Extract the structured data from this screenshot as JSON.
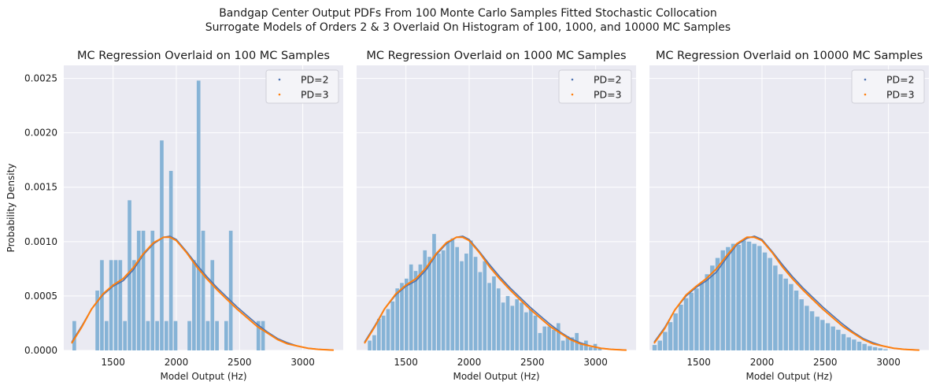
{
  "figure": {
    "suptitle_line1": "Bandgap Center Output PDFs From 100 Monte Carlo Samples Fitted Stochastic Collocation",
    "suptitle_line2": "Surrogate Models of Orders 2 & 3 Overlaid On Histogram of 100, 1000, and 10000 MC Samples"
  },
  "colors": {
    "panel_bg": "#eaeaf2",
    "grid": "#ffffff",
    "histogram": "#86b3d6",
    "pd2": "#4c72b0",
    "pd3": "#ff7f0e",
    "legend_bg": "#f4f4f8"
  },
  "chart_data": [
    {
      "type": "bar",
      "title": "MC Regression Overlaid on 100 MC Samples",
      "xlabel": "Model Output (Hz)",
      "ylabel": "Probability Density",
      "xlim": [
        1110,
        3320
      ],
      "ylim": [
        0,
        0.00262
      ],
      "xticks": [
        1500,
        2000,
        2500,
        3000
      ],
      "yticks": [
        "0.0000",
        "0.0005",
        "0.0010",
        "0.0015",
        "0.0020",
        "0.0025"
      ],
      "grid": true,
      "legend": {
        "position": "top-right",
        "entries": [
          "PD=2",
          "PD=3"
        ]
      },
      "histogram": {
        "bin_start": 1175,
        "bin_width": 36.4,
        "values": [
          0.00027,
          0,
          0,
          0,
          0,
          0.00055,
          0.00083,
          0.00027,
          0.00083,
          0.00083,
          0.00083,
          0.00027,
          0.00138,
          0.00083,
          0.0011,
          0.0011,
          0.00027,
          0.0011,
          0.00027,
          0.00193,
          0.00027,
          0.00165,
          0.00027,
          0,
          0,
          0.00027,
          0.00083,
          0.00248,
          0.0011,
          0.00027,
          0.00083,
          0.00027,
          0,
          0.00027,
          0.0011,
          0,
          0,
          0,
          0,
          0,
          0.00027,
          0.00027
        ]
      },
      "series": [
        {
          "name": "PD=2",
          "x": [
            1175,
            1250,
            1330,
            1420,
            1500,
            1580,
            1660,
            1740,
            1820,
            1900,
            1950,
            2000,
            2080,
            2160,
            2240,
            2320,
            2400,
            2480,
            2560,
            2640,
            2720,
            2800,
            2880,
            2960,
            3040,
            3120,
            3240
          ],
          "y": [
            8e-05,
            0.00022,
            0.00038,
            0.00051,
            0.00059,
            0.00064,
            0.00074,
            0.00088,
            0.00098,
            0.00104,
            0.00105,
            0.00102,
            0.00091,
            0.00079,
            0.00068,
            0.00058,
            0.00049,
            0.0004,
            0.00032,
            0.00024,
            0.00017,
            0.00011,
            7e-05,
            4e-05,
            2e-05,
            1e-05,
            3e-06
          ]
        },
        {
          "name": "PD=3",
          "x": [
            1175,
            1250,
            1330,
            1420,
            1500,
            1580,
            1660,
            1740,
            1820,
            1900,
            1950,
            2000,
            2080,
            2160,
            2240,
            2320,
            2400,
            2480,
            2560,
            2640,
            2720,
            2800,
            2880,
            2960,
            3040,
            3120,
            3240
          ],
          "y": [
            7e-05,
            0.00021,
            0.00038,
            0.00052,
            0.0006,
            0.00066,
            0.00076,
            0.00089,
            0.00099,
            0.00104,
            0.00104,
            0.00101,
            0.0009,
            0.00077,
            0.00066,
            0.00056,
            0.00047,
            0.00038,
            0.0003,
            0.00022,
            0.00016,
            0.0001,
            6e-05,
            4e-05,
            2e-05,
            1e-05,
            3e-06
          ]
        }
      ]
    },
    {
      "type": "bar",
      "title": "MC Regression Overlaid on 1000 MC Samples",
      "xlabel": "Model Output (Hz)",
      "ylabel": "",
      "xlim": [
        1110,
        3320
      ],
      "ylim": [
        0,
        0.00262
      ],
      "xticks": [
        1500,
        2000,
        2500,
        3000
      ],
      "yticks": [],
      "grid": true,
      "legend": {
        "position": "top-right",
        "entries": [
          "PD=2",
          "PD=3"
        ]
      },
      "histogram": {
        "bin_start": 1195,
        "bin_width": 36.4,
        "values": [
          9e-05,
          0.00014,
          0.00029,
          0.00032,
          0.00038,
          0.00045,
          0.00057,
          0.00062,
          0.00066,
          0.00079,
          0.00073,
          0.00079,
          0.00092,
          0.00086,
          0.00107,
          0.00089,
          0.00092,
          0.001,
          0.00103,
          0.00095,
          0.00082,
          0.00089,
          0.00101,
          0.00086,
          0.00072,
          0.00082,
          0.00062,
          0.00068,
          0.00057,
          0.00044,
          0.0005,
          0.00041,
          0.00047,
          0.00044,
          0.00035,
          0.00038,
          0.00032,
          0.00016,
          0.00022,
          0.00022,
          0.00019,
          0.00025,
          9e-05,
          0.00013,
          0.00012,
          0.00016,
          6e-05,
          9e-05,
          3e-05,
          6e-05,
          2e-05
        ]
      },
      "series": [
        {
          "name": "PD=2",
          "x": [
            1175,
            1250,
            1330,
            1420,
            1500,
            1580,
            1660,
            1740,
            1820,
            1900,
            1950,
            2000,
            2080,
            2160,
            2240,
            2320,
            2400,
            2480,
            2560,
            2640,
            2720,
            2800,
            2880,
            2960,
            3040,
            3120,
            3240
          ],
          "y": [
            8e-05,
            0.00022,
            0.00038,
            0.00051,
            0.00059,
            0.00064,
            0.00074,
            0.00088,
            0.00098,
            0.00104,
            0.00105,
            0.00102,
            0.00091,
            0.00079,
            0.00068,
            0.00058,
            0.00049,
            0.0004,
            0.00032,
            0.00024,
            0.00017,
            0.00011,
            7e-05,
            4e-05,
            2e-05,
            1e-05,
            3e-06
          ]
        },
        {
          "name": "PD=3",
          "x": [
            1175,
            1250,
            1330,
            1420,
            1500,
            1580,
            1660,
            1740,
            1820,
            1900,
            1950,
            2000,
            2080,
            2160,
            2240,
            2320,
            2400,
            2480,
            2560,
            2640,
            2720,
            2800,
            2880,
            2960,
            3040,
            3120,
            3240
          ],
          "y": [
            7e-05,
            0.00021,
            0.00038,
            0.00052,
            0.0006,
            0.00066,
            0.00076,
            0.00089,
            0.00099,
            0.00104,
            0.00104,
            0.00101,
            0.0009,
            0.00077,
            0.00066,
            0.00056,
            0.00047,
            0.00038,
            0.0003,
            0.00022,
            0.00016,
            0.0001,
            6e-05,
            4e-05,
            2e-05,
            1e-05,
            3e-06
          ]
        }
      ]
    },
    {
      "type": "bar",
      "title": "MC Regression Overlaid on 10000 MC Samples",
      "xlabel": "Model Output (Hz)",
      "ylabel": "",
      "xlim": [
        1110,
        3320
      ],
      "ylim": [
        0,
        0.00262
      ],
      "xticks": [
        1500,
        2000,
        2500,
        3000
      ],
      "yticks": [],
      "grid": true,
      "legend": {
        "position": "top-right",
        "entries": [
          "PD=2",
          "PD=3"
        ]
      },
      "histogram": {
        "bin_start": 1130,
        "bin_width": 41.5,
        "values": [
          5e-05,
          9e-05,
          0.00017,
          0.00026,
          0.00034,
          0.00042,
          0.00048,
          0.00053,
          0.00057,
          0.00062,
          0.0007,
          0.00078,
          0.00085,
          0.00092,
          0.00095,
          0.00098,
          0.00097,
          0.00101,
          0.001,
          0.00098,
          0.00096,
          0.0009,
          0.00085,
          0.00078,
          0.0007,
          0.00066,
          0.00061,
          0.00055,
          0.00047,
          0.00041,
          0.00036,
          0.00031,
          0.00028,
          0.00025,
          0.00022,
          0.00019,
          0.00015,
          0.00012,
          0.0001,
          8e-05,
          6e-05,
          4e-05,
          3e-05,
          2e-05,
          1e-05
        ]
      },
      "series": [
        {
          "name": "PD=2",
          "x": [
            1150,
            1230,
            1310,
            1400,
            1480,
            1560,
            1640,
            1720,
            1800,
            1880,
            1940,
            2000,
            2080,
            2160,
            2240,
            2320,
            2400,
            2480,
            2560,
            2640,
            2720,
            2800,
            2880,
            2960,
            3040,
            3120,
            3240
          ],
          "y": [
            8e-05,
            0.00021,
            0.00037,
            0.0005,
            0.00058,
            0.00064,
            0.00072,
            0.00085,
            0.00097,
            0.00103,
            0.00105,
            0.00102,
            0.00091,
            0.00079,
            0.00068,
            0.00058,
            0.00049,
            0.0004,
            0.00032,
            0.00024,
            0.00017,
            0.00011,
            7e-05,
            4e-05,
            2e-05,
            1e-05,
            3e-06
          ]
        },
        {
          "name": "PD=3",
          "x": [
            1150,
            1230,
            1310,
            1400,
            1480,
            1560,
            1640,
            1720,
            1800,
            1880,
            1940,
            2000,
            2080,
            2160,
            2240,
            2320,
            2400,
            2480,
            2560,
            2640,
            2720,
            2800,
            2880,
            2960,
            3040,
            3120,
            3240
          ],
          "y": [
            7e-05,
            0.0002,
            0.00037,
            0.00051,
            0.00059,
            0.00066,
            0.00075,
            0.00087,
            0.00098,
            0.00104,
            0.00104,
            0.00101,
            0.0009,
            0.00077,
            0.00066,
            0.00056,
            0.00047,
            0.00038,
            0.0003,
            0.00022,
            0.00016,
            0.0001,
            6e-05,
            4e-05,
            2e-05,
            1e-05,
            3e-06
          ]
        }
      ]
    }
  ]
}
